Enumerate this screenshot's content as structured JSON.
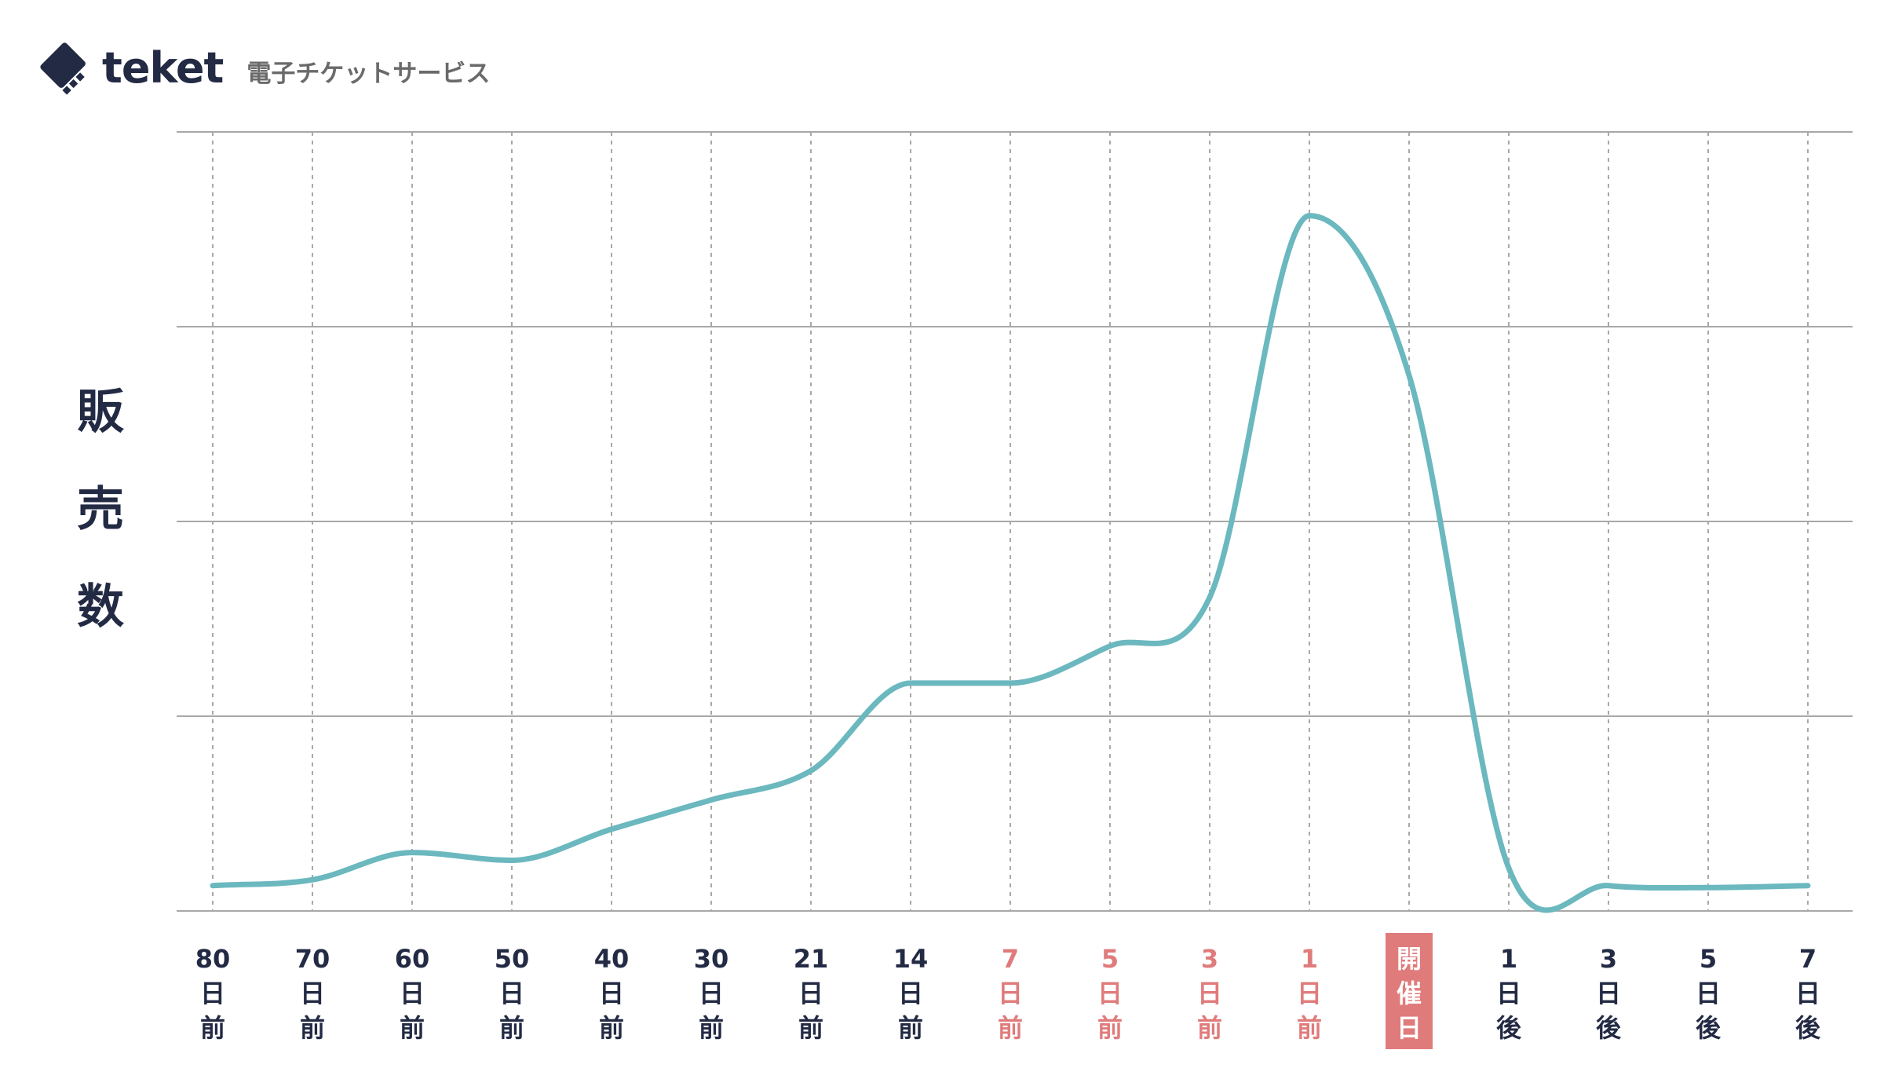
{
  "brand": {
    "name": "teket",
    "tagline": "電子チケットサービス",
    "text_color": "#232a44"
  },
  "colors": {
    "line": "#6bb8bf",
    "grid": "#a8a8a8",
    "highlight_text": "#e07b7b",
    "event_box": "#e07b7b",
    "normal_text": "#232a44"
  },
  "chart_data": {
    "type": "line",
    "title": "",
    "xlabel": "",
    "ylabel": "販売数",
    "ylabel_chars": [
      "販",
      "売",
      "数"
    ],
    "y_ticks_shown": false,
    "grid": true,
    "ylim": [
      0,
      4
    ],
    "categories": [
      {
        "top": "80",
        "mid": "日",
        "bot": "前",
        "style": "normal"
      },
      {
        "top": "70",
        "mid": "日",
        "bot": "前",
        "style": "normal"
      },
      {
        "top": "60",
        "mid": "日",
        "bot": "前",
        "style": "normal"
      },
      {
        "top": "50",
        "mid": "日",
        "bot": "前",
        "style": "normal"
      },
      {
        "top": "40",
        "mid": "日",
        "bot": "前",
        "style": "normal"
      },
      {
        "top": "30",
        "mid": "日",
        "bot": "前",
        "style": "normal"
      },
      {
        "top": "21",
        "mid": "日",
        "bot": "前",
        "style": "normal"
      },
      {
        "top": "14",
        "mid": "日",
        "bot": "前",
        "style": "normal"
      },
      {
        "top": "7",
        "mid": "日",
        "bot": "前",
        "style": "highlight"
      },
      {
        "top": "5",
        "mid": "日",
        "bot": "前",
        "style": "highlight"
      },
      {
        "top": "3",
        "mid": "日",
        "bot": "前",
        "style": "highlight"
      },
      {
        "top": "1",
        "mid": "日",
        "bot": "前",
        "style": "highlight"
      },
      {
        "top": "開",
        "mid": "催",
        "bot": "日",
        "style": "event"
      },
      {
        "top": "1",
        "mid": "日",
        "bot": "後",
        "style": "normal"
      },
      {
        "top": "3",
        "mid": "日",
        "bot": "後",
        "style": "normal"
      },
      {
        "top": "5",
        "mid": "日",
        "bot": "後",
        "style": "normal"
      },
      {
        "top": "7",
        "mid": "日",
        "bot": "後",
        "style": "normal"
      }
    ],
    "series": [
      {
        "values": [
          0.13,
          0.16,
          0.3,
          0.26,
          0.42,
          0.57,
          0.72,
          1.17,
          1.17,
          1.36,
          1.61,
          3.57,
          2.75,
          0.22,
          0.13,
          0.12,
          0.13
        ]
      }
    ]
  }
}
